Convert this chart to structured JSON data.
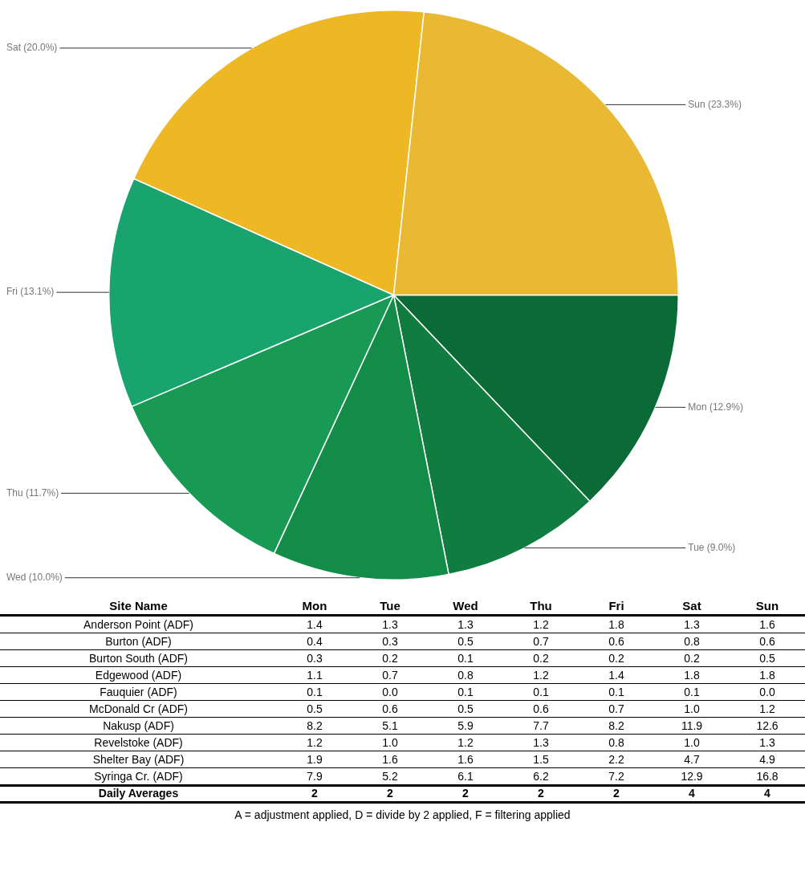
{
  "chart_data": [
    {
      "type": "pie",
      "categories": [
        "Mon",
        "Tue",
        "Wed",
        "Thu",
        "Fri",
        "Sat",
        "Sun"
      ],
      "values": [
        12.9,
        9.0,
        10.0,
        11.7,
        13.1,
        20.0,
        23.3
      ],
      "colors": [
        "#0b6b36",
        "#107c40",
        "#138c48",
        "#189a54",
        "#19a36e",
        "#edb823",
        "#eab933"
      ],
      "value_labels": [
        "(12.9%)",
        "(9.0%)",
        "(10.0%)",
        "(11.7%)",
        "(13.1%)",
        "(20.0%)",
        "(23.3%)"
      ],
      "legend": false
    },
    {
      "type": "heatmap",
      "ylabel": "Site Name",
      "categories": [
        "Mon",
        "Tue",
        "Wed",
        "Thu",
        "Fri",
        "Sat",
        "Sun"
      ],
      "y_categories": [
        "Anderson Point  (ADF)",
        "Burton  (ADF)",
        "Burton South  (ADF)",
        "Edgewood  (ADF)",
        "Fauquier  (ADF)",
        "McDonald Cr  (ADF)",
        "Nakusp  (ADF)",
        "Revelstoke  (ADF)",
        "Shelter Bay  (ADF)",
        "Syringa Cr.  (ADF)",
        "Daily Averages"
      ],
      "cells": [
        [
          1.4,
          1.3,
          1.3,
          1.2,
          1.8,
          1.3,
          1.6
        ],
        [
          0.4,
          0.3,
          0.5,
          0.7,
          0.6,
          0.8,
          0.6
        ],
        [
          0.3,
          0.2,
          0.1,
          0.2,
          0.2,
          0.2,
          0.5
        ],
        [
          1.1,
          0.7,
          0.8,
          1.2,
          1.4,
          1.8,
          1.8
        ],
        [
          0.1,
          0.0,
          0.1,
          0.1,
          0.1,
          0.1,
          0.0
        ],
        [
          0.5,
          0.6,
          0.5,
          0.6,
          0.7,
          1.0,
          1.2
        ],
        [
          8.2,
          5.1,
          5.9,
          7.7,
          8.2,
          11.9,
          12.6
        ],
        [
          1.2,
          1.0,
          1.2,
          1.3,
          0.8,
          1.0,
          1.3
        ],
        [
          1.9,
          1.6,
          1.6,
          1.5,
          2.2,
          4.7,
          4.9
        ],
        [
          7.9,
          5.2,
          6.1,
          6.2,
          7.2,
          12.9,
          16.8
        ],
        [
          2,
          2,
          2,
          2,
          2,
          4,
          4
        ]
      ],
      "cell_labels": [
        [
          "1.4",
          "1.3",
          "1.3",
          "1.2",
          "1.8",
          "1.3",
          "1.6"
        ],
        [
          "0.4",
          "0.3",
          "0.5",
          "0.7",
          "0.6",
          "0.8",
          "0.6"
        ],
        [
          "0.3",
          "0.2",
          "0.1",
          "0.2",
          "0.2",
          "0.2",
          "0.5"
        ],
        [
          "1.1",
          "0.7",
          "0.8",
          "1.2",
          "1.4",
          "1.8",
          "1.8"
        ],
        [
          "0.1",
          "0.0",
          "0.1",
          "0.1",
          "0.1",
          "0.1",
          "0.0"
        ],
        [
          "0.5",
          "0.6",
          "0.5",
          "0.6",
          "0.7",
          "1.0",
          "1.2"
        ],
        [
          "8.2",
          "5.1",
          "5.9",
          "7.7",
          "8.2",
          "11.9",
          "12.6"
        ],
        [
          "1.2",
          "1.0",
          "1.2",
          "1.3",
          "0.8",
          "1.0",
          "1.3"
        ],
        [
          "1.9",
          "1.6",
          "1.6",
          "1.5",
          "2.2",
          "4.7",
          "4.9"
        ],
        [
          "7.9",
          "5.2",
          "6.1",
          "6.2",
          "7.2",
          "12.9",
          "16.8"
        ],
        [
          "2",
          "2",
          "2",
          "2",
          "2",
          "4",
          "4"
        ]
      ],
      "annotations": [
        "A = adjustment applied, D = divide by 2 applied, F = filtering applied"
      ]
    }
  ]
}
